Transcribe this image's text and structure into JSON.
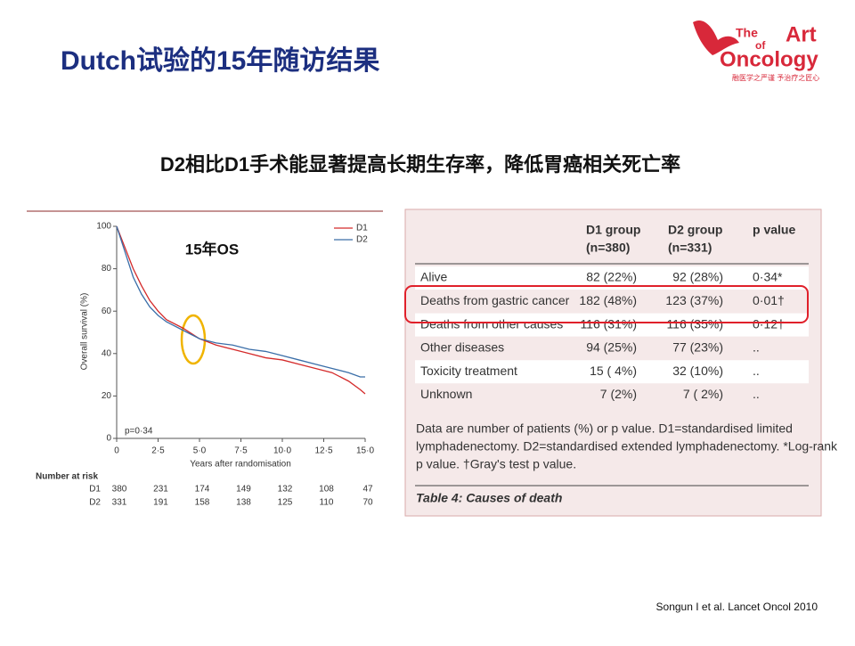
{
  "slide": {
    "title": "Dutch试验的15年随访结果",
    "subtitle": "D2相比D1手术能显著提高长期生存率，降低胃癌相关死亡率",
    "citation": "Songun I et al. Lancet Oncol  2010"
  },
  "logo": {
    "line1": "The",
    "line2": "Art",
    "line3": "of",
    "line4": "Oncology",
    "tagline": "融医学之严谨 予治疗之匠心"
  },
  "chart_data": {
    "type": "line",
    "ylabel": "Overall survival (%)",
    "xlabel": "Years after randomisation",
    "annotation": "15年OS",
    "p_text": "p=0·34",
    "x": [
      0,
      0.5,
      1,
      1.5,
      2,
      2.5,
      3,
      4,
      5,
      6,
      7,
      8,
      9,
      10,
      11,
      12,
      13,
      14,
      14.7,
      15
    ],
    "series": [
      {
        "name": "D1",
        "color": "#d42a2a",
        "values": [
          100,
          90,
          80,
          72,
          65,
          60,
          56,
          52,
          47,
          44,
          42,
          40,
          38,
          37,
          35,
          33,
          31,
          27,
          23,
          21
        ]
      },
      {
        "name": "D2",
        "color": "#3a6ea8",
        "values": [
          100,
          88,
          76,
          68,
          62,
          58,
          55,
          51,
          47,
          45,
          44,
          42,
          41,
          39,
          37,
          35,
          33,
          31,
          29,
          29
        ]
      }
    ],
    "xlim": [
      0,
      15
    ],
    "ylim": [
      0,
      100
    ],
    "xticks": [
      0,
      {
        "value": 2.5,
        "label": "2·5"
      },
      {
        "value": 5,
        "label": "5·0"
      },
      {
        "value": 7.5,
        "label": "7·5"
      },
      {
        "value": 10,
        "label": "10·0"
      },
      {
        "value": 12.5,
        "label": "12·5"
      },
      {
        "value": 15,
        "label": "15·0"
      }
    ],
    "yticks": [
      0,
      20,
      40,
      60,
      80,
      100
    ],
    "legend": "top-right"
  },
  "risk_table": {
    "title": "Number at risk",
    "rows": [
      {
        "label": "D1",
        "values": [
          "380",
          "231",
          "174",
          "149",
          "132",
          "108",
          "47"
        ]
      },
      {
        "label": "D2",
        "values": [
          "331",
          "191",
          "158",
          "138",
          "125",
          "110",
          "70"
        ]
      }
    ]
  },
  "table": {
    "header": [
      [
        "D1 group",
        "(n=380)"
      ],
      [
        "D2 group",
        "(n=331)"
      ],
      [
        "p value"
      ]
    ],
    "rows": [
      [
        "Alive",
        "82 (22%)",
        "92 (28%)",
        "0·34*"
      ],
      [
        "Deaths from gastric cancer",
        "182 (48%)",
        "123 (37%)",
        "0·01†"
      ],
      [
        "Deaths from other causes",
        "116 (31%)",
        "116 (35%)",
        "0·12†"
      ],
      [
        "Other diseases",
        "94 (25%)",
        "77 (23%)",
        ".."
      ],
      [
        "Toxicity treatment",
        "15 ( 4%)",
        "32 (10%)",
        ".."
      ],
      [
        "Unknown",
        "7 (2%)",
        "7 ( 2%)",
        ".."
      ]
    ],
    "footnote": [
      "Data are number of patients (%) or p value. D1=standardised limited",
      "lymphadenectomy. D2=standardised extended lymphadenectomy. *Log-rank",
      "p value. †Gray's test p value."
    ],
    "caption": "Table 4: Causes of death"
  }
}
